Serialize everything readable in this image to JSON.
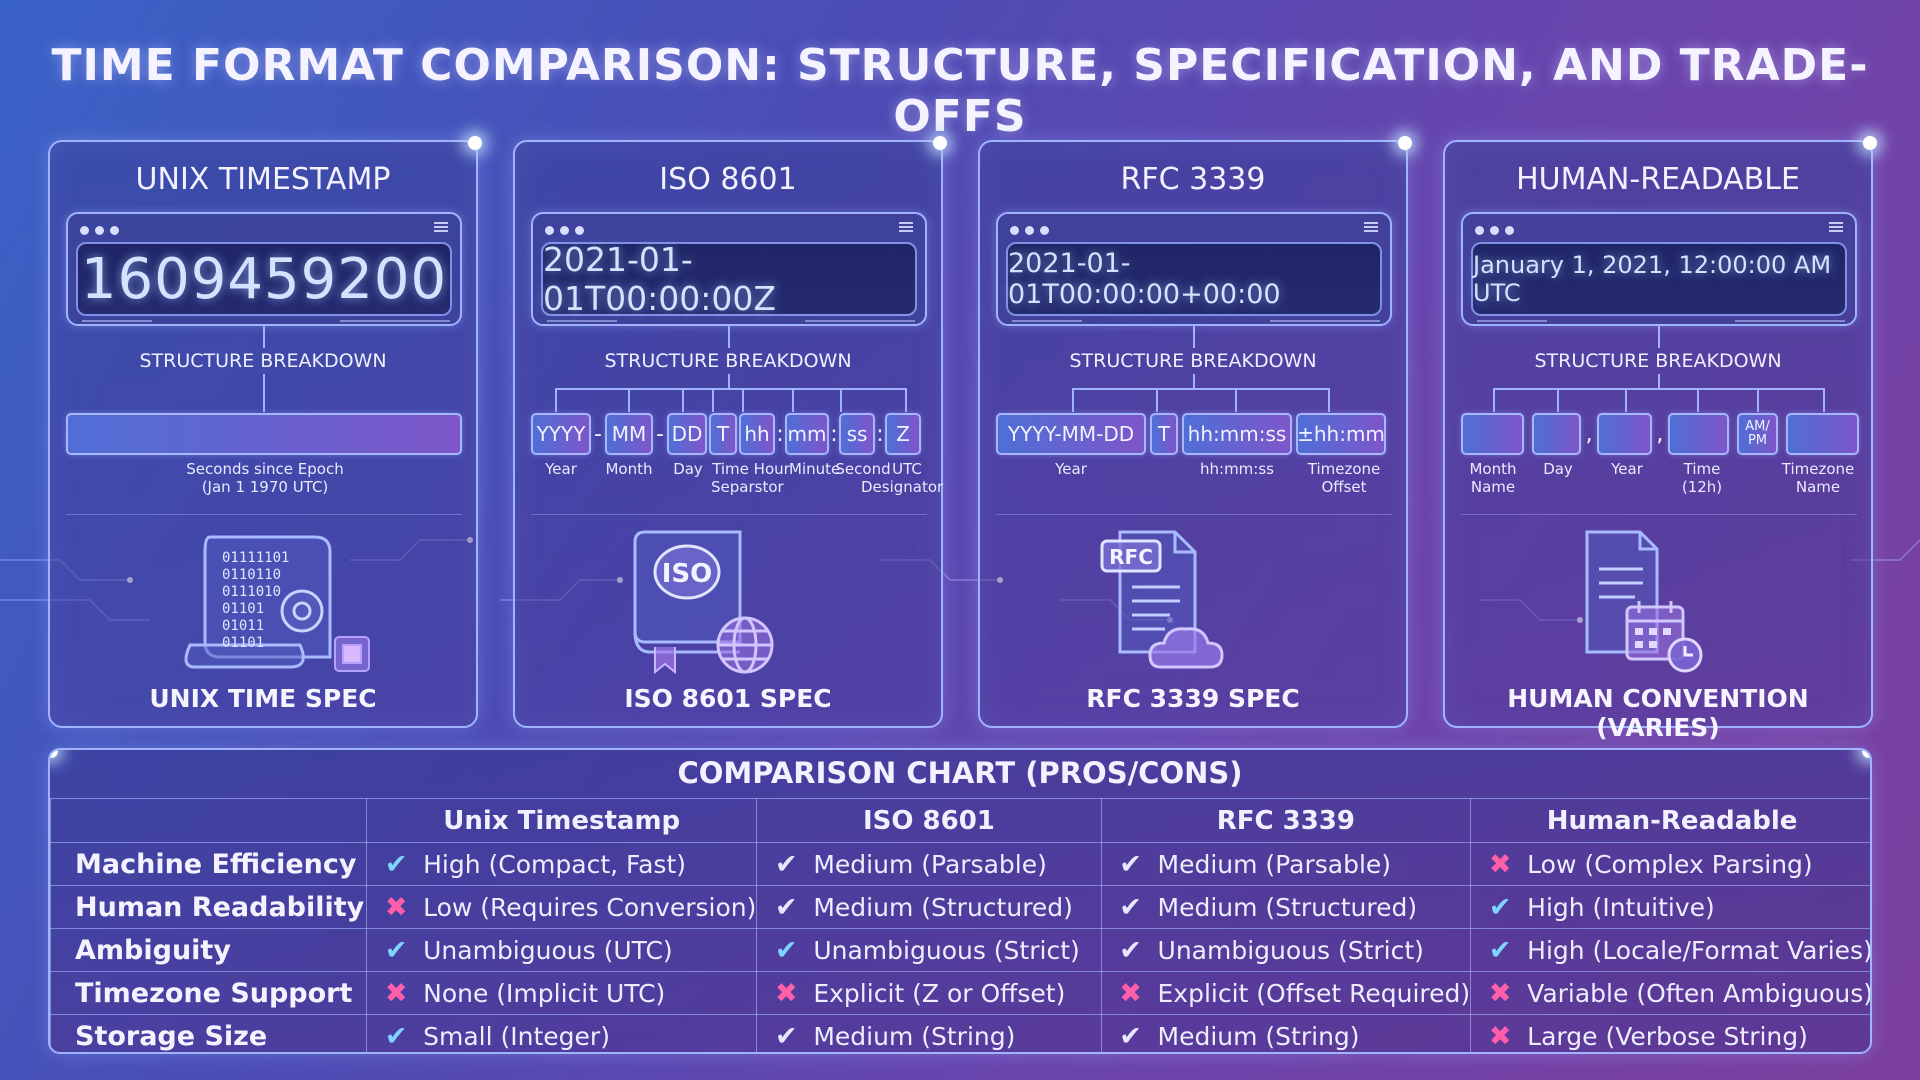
{
  "title": "TIME FORMAT COMPARISON: STRUCTURE, SPECIFICATION, AND TRADE-OFFS",
  "cards": [
    {
      "title": "UNIX TIMESTAMP",
      "display": "1609459200",
      "breakdown": "STRUCTURE BREAKDOWN",
      "segments": [],
      "labels": [
        "Seconds since Epoch",
        "(Jan 1 1970 UTC)"
      ],
      "icon": "scroll-binary-gear-icon",
      "icon_text": [
        "01111101",
        "0110110",
        "0111010",
        "01101",
        "01011",
        "01101"
      ],
      "spec": "UNIX TIME SPEC"
    },
    {
      "title": "ISO 8601",
      "display": "2021-01-01T00:00:00Z",
      "breakdown": "STRUCTURE BREAKDOWN",
      "segments": [
        "YYYY",
        "-",
        "MM",
        "-",
        "DD",
        "T",
        "hh",
        ":",
        "mm",
        ":",
        "ss",
        ":",
        "Z"
      ],
      "labels": [
        "Year",
        "Month",
        "Day",
        "Time Hour",
        "Minute",
        "Second",
        "UTC",
        "Separstor",
        "Designator"
      ],
      "icon": "iso-certificate-globe-icon",
      "icon_text": "ISO",
      "spec": "ISO 8601 SPEC"
    },
    {
      "title": "RFC 3339",
      "display": "2021-01-01T00:00:00+00:00",
      "breakdown": "STRUCTURE BREAKDOWN",
      "segments": [
        "YYYY-MM-DD",
        "T",
        "hh:mm:ss",
        "±hh:mm"
      ],
      "labels": [
        "Year",
        "hh:mm:ss",
        "Timezone",
        "Offset"
      ],
      "icon": "rfc-document-cloud-icon",
      "icon_text": "RFC",
      "spec": "RFC 3339 SPEC"
    },
    {
      "title": "HUMAN-READABLE",
      "display": "January 1, 2021, 12:00:00 AM UTC",
      "breakdown": "STRUCTURE BREAKDOWN",
      "segments": [
        "",
        "",
        ",",
        "",
        ",",
        "",
        "AM/",
        "PM",
        ""
      ],
      "labels": [
        "Month",
        "Name",
        "Day",
        "Year",
        "Time",
        "(12h)",
        "Timezone",
        "Name"
      ],
      "icon": "document-calendar-clock-icon",
      "spec": "HUMAN CONVENTION (VARIES)"
    }
  ],
  "table": {
    "title": "COMPARISON CHART (PROS/CONS)",
    "columns": [
      "",
      "Unix Timestamp",
      "ISO 8601",
      "RFC 3339",
      "Human-Readable"
    ],
    "rows": [
      {
        "label": "Machine Efficiency",
        "cells": [
          {
            "mark": "check",
            "text": "High (Compact, Fast)"
          },
          {
            "mark": "check-neutral",
            "text": "Medium (Parsable)"
          },
          {
            "mark": "check-neutral",
            "text": "Medium (Parsable)"
          },
          {
            "mark": "cross",
            "text": "Low (Complex Parsing)"
          }
        ]
      },
      {
        "label": "Human Readability",
        "cells": [
          {
            "mark": "cross",
            "text": "Low (Requires Conversion)"
          },
          {
            "mark": "check-neutral",
            "text": "Medium (Structured)"
          },
          {
            "mark": "check-neutral",
            "text": "Medium (Structured)"
          },
          {
            "mark": "check",
            "text": "High (Intuitive)"
          }
        ]
      },
      {
        "label": "Ambiguity",
        "cells": [
          {
            "mark": "check",
            "text": "Unambiguous (UTC)"
          },
          {
            "mark": "check",
            "text": "Unambiguous (Strict)"
          },
          {
            "mark": "check-neutral",
            "text": "Unambiguous (Strict)"
          },
          {
            "mark": "check",
            "text": "High (Locale/Format Varies)"
          }
        ]
      },
      {
        "label": "Timezone Support",
        "cells": [
          {
            "mark": "cross",
            "text": "None (Implicit UTC)"
          },
          {
            "mark": "cross",
            "text": "Explicit (Z or Offset)"
          },
          {
            "mark": "cross",
            "text": "Explicit (Offset Required)"
          },
          {
            "mark": "cross",
            "text": "Variable (Often Ambiguous)"
          }
        ]
      },
      {
        "label": "Storage Size",
        "cells": [
          {
            "mark": "check",
            "text": "Small (Integer)"
          },
          {
            "mark": "check-neutral",
            "text": "Medium (String)"
          },
          {
            "mark": "check-neutral",
            "text": "Medium (String)"
          },
          {
            "mark": "cross",
            "text": "Large (Verbose String)"
          }
        ]
      }
    ]
  },
  "colors": {
    "pro": "#7fd4ff",
    "con": "#ff5ea8",
    "neutral": "#e7e7ff",
    "border": "#9fb3ff"
  }
}
